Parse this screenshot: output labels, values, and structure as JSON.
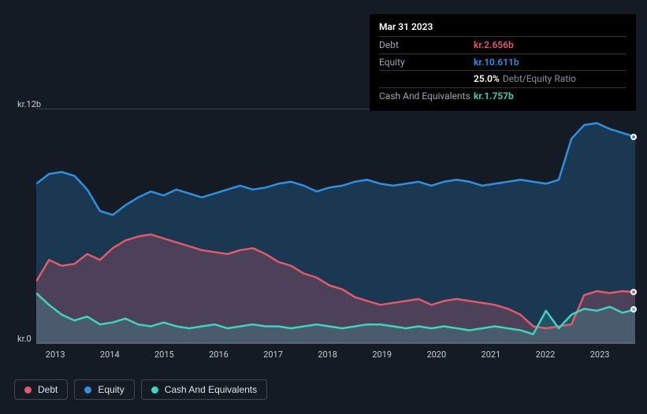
{
  "chart": {
    "type": "area",
    "background_color": "#151b24",
    "grid_color": "#3a4350",
    "label_color": "#c9ccd1",
    "label_fontsize": 11,
    "y_axis": {
      "min": 0,
      "max": 12,
      "top_label": "kr.12b",
      "bottom_label": "kr.0"
    },
    "x_axis": {
      "years": [
        "2013",
        "2014",
        "2015",
        "2016",
        "2017",
        "2018",
        "2019",
        "2020",
        "2021",
        "2022",
        "2023"
      ]
    },
    "series": {
      "equity": {
        "color": "#2f8fe0",
        "fill": "rgba(47,143,224,0.25)",
        "stroke_width": 2.5,
        "values": [
          8.2,
          8.7,
          8.8,
          8.6,
          7.9,
          6.8,
          6.6,
          7.1,
          7.5,
          7.8,
          7.6,
          7.9,
          7.7,
          7.5,
          7.7,
          7.9,
          8.1,
          7.9,
          8.0,
          8.2,
          8.3,
          8.1,
          7.8,
          8.0,
          8.1,
          8.3,
          8.4,
          8.2,
          8.1,
          8.2,
          8.3,
          8.1,
          8.3,
          8.4,
          8.3,
          8.1,
          8.2,
          8.3,
          8.4,
          8.3,
          8.2,
          8.4,
          10.5,
          11.2,
          11.3,
          11.0,
          10.8,
          10.6
        ]
      },
      "debt": {
        "color": "#e15a6b",
        "fill": "rgba(225,90,107,0.25)",
        "stroke_width": 2.5,
        "values": [
          3.2,
          4.3,
          4.0,
          4.1,
          4.6,
          4.3,
          4.9,
          5.3,
          5.5,
          5.6,
          5.4,
          5.2,
          5.0,
          4.8,
          4.7,
          4.6,
          4.8,
          4.9,
          4.6,
          4.2,
          4.0,
          3.6,
          3.4,
          3.0,
          2.8,
          2.4,
          2.2,
          2.0,
          2.1,
          2.2,
          2.3,
          2.0,
          2.2,
          2.3,
          2.2,
          2.1,
          2.0,
          1.8,
          1.5,
          0.9,
          0.8,
          0.9,
          1.0,
          2.5,
          2.7,
          2.6,
          2.7,
          2.65
        ]
      },
      "cash": {
        "color": "#3fd4c0",
        "fill": "rgba(63,212,192,0.18)",
        "stroke_width": 2.5,
        "values": [
          2.6,
          2.0,
          1.5,
          1.2,
          1.4,
          1.0,
          1.1,
          1.3,
          1.0,
          0.9,
          1.1,
          0.9,
          0.8,
          0.9,
          1.0,
          0.8,
          0.9,
          1.0,
          0.9,
          0.9,
          0.8,
          0.9,
          1.0,
          0.9,
          0.8,
          0.9,
          1.0,
          1.0,
          0.9,
          0.8,
          0.9,
          0.8,
          0.9,
          0.8,
          0.7,
          0.8,
          0.9,
          0.8,
          0.7,
          0.5,
          1.7,
          0.8,
          1.5,
          1.8,
          1.7,
          1.9,
          1.6,
          1.76
        ]
      }
    },
    "markers": [
      {
        "series": "equity",
        "value": 10.6
      },
      {
        "series": "debt",
        "value": 2.65
      },
      {
        "series": "cash",
        "value": 1.76
      }
    ]
  },
  "tooltip": {
    "title": "Mar 31 2023",
    "rows": [
      {
        "label": "Debt",
        "value": "kr.2.656b",
        "color": "#e15a6b"
      },
      {
        "label": "Equity",
        "value": "kr.10.611b",
        "color": "#2f8fe0"
      },
      {
        "label": "",
        "value": "25.0%",
        "suffix": "Debt/Equity Ratio",
        "color": "#ffffff"
      },
      {
        "label": "Cash And Equivalents",
        "value": "kr.1.757b",
        "color": "#3fd4c0"
      }
    ]
  },
  "legend": [
    {
      "label": "Debt",
      "color": "#e15a6b"
    },
    {
      "label": "Equity",
      "color": "#2f8fe0"
    },
    {
      "label": "Cash And Equivalents",
      "color": "#3fd4c0"
    }
  ]
}
